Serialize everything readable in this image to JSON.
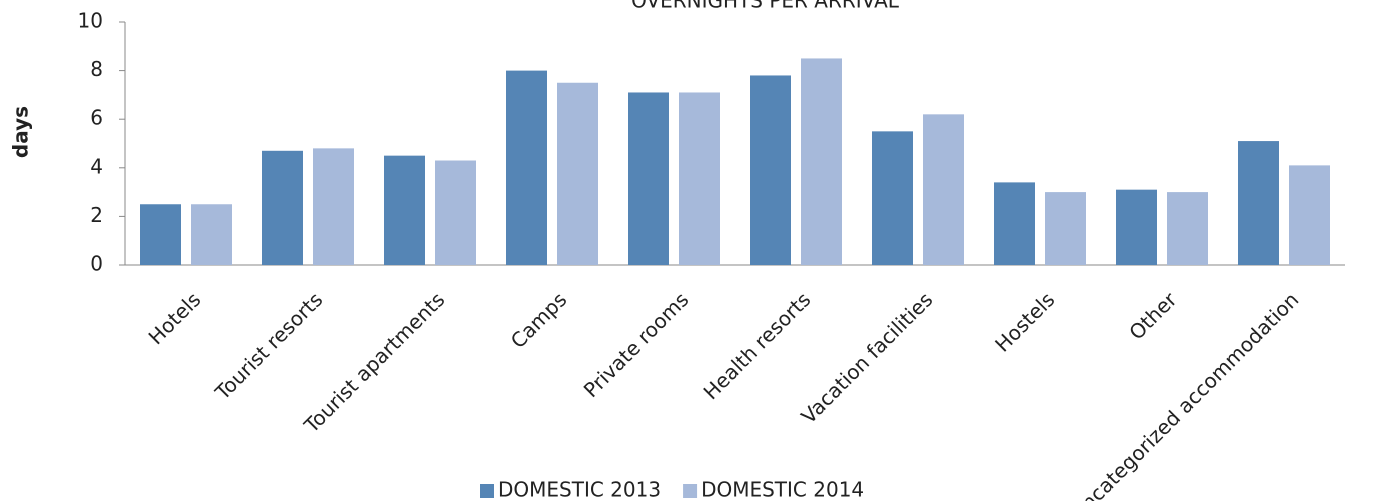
{
  "chart_data": {
    "type": "bar",
    "title": "OVERNIGHTS PER ARRIVAL",
    "y_label": "days",
    "categories": [
      "Hotels",
      "Tourist resorts",
      "Tourist apartments",
      "Camps",
      "Private rooms",
      "Health resorts",
      "Vacation facilities",
      "Hostels",
      "Other",
      "Uncategorized accommodation"
    ],
    "series": [
      {
        "name": "DOMESTIC 2013",
        "color": "#5585b5",
        "values": [
          2.5,
          4.7,
          4.5,
          8.0,
          7.1,
          7.8,
          5.5,
          3.4,
          3.1,
          5.1
        ]
      },
      {
        "name": "DOMESTIC 2014",
        "color": "#a6b9da",
        "values": [
          2.5,
          4.8,
          4.3,
          7.5,
          7.1,
          8.5,
          6.2,
          3.0,
          3.0,
          4.1
        ]
      }
    ],
    "ylim": [
      0,
      10
    ],
    "yticks": [
      0,
      2,
      4,
      6,
      8,
      10
    ],
    "grid": false,
    "legend": "bottom"
  }
}
